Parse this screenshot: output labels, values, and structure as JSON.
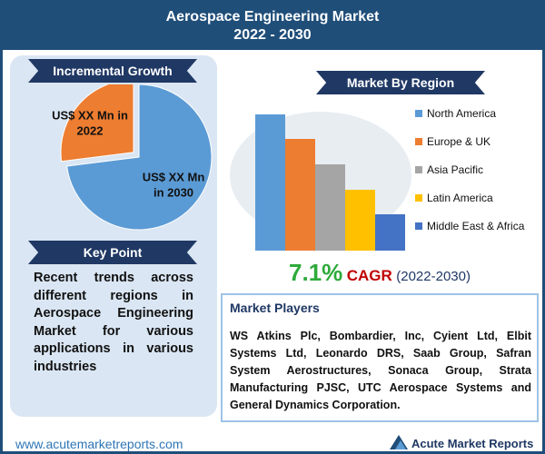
{
  "header": {
    "title": "Aerospace Engineering Market",
    "subtitle": "2022 - 2030"
  },
  "chart_data": [
    {
      "type": "pie",
      "title": "Incremental Growth",
      "categories": [
        "US$ XX Mn in 2022",
        "US$ XX Mn in 2030"
      ],
      "values": [
        27,
        73
      ],
      "colors": [
        "#ed7d31",
        "#5b9bd5"
      ]
    },
    {
      "type": "bar",
      "title": "Market By Region",
      "categories": [
        "North America",
        "Europe & UK",
        "Asia Pacific",
        "Latin America",
        "Middle East & Africa"
      ],
      "values": [
        150,
        123,
        95,
        67,
        40
      ],
      "colors": [
        "#5b9bd5",
        "#ed7d31",
        "#a5a5a5",
        "#ffc000",
        "#4472c4"
      ]
    }
  ],
  "cagr": {
    "value": "7.1%",
    "label": "CAGR",
    "period": "(2022-2030)"
  },
  "key_point": {
    "title": "Key Point",
    "text": "Recent trends across different regions in Aerospace Engineering Market for various applications in various industries"
  },
  "players": {
    "title": "Market Players",
    "text": "WS Atkins Plc, Bombardier, Inc, Cyient Ltd, Elbit Systems Ltd, Leonardo DRS, Saab Group, Safran System Aerostructures, Sonaca Group, Strata Manufacturing PJSC, UTC Aerospace Systems and General Dynamics Corporation."
  },
  "footer": {
    "url": "www.acutemarketreports.com",
    "brand": "Acute Market Reports"
  }
}
